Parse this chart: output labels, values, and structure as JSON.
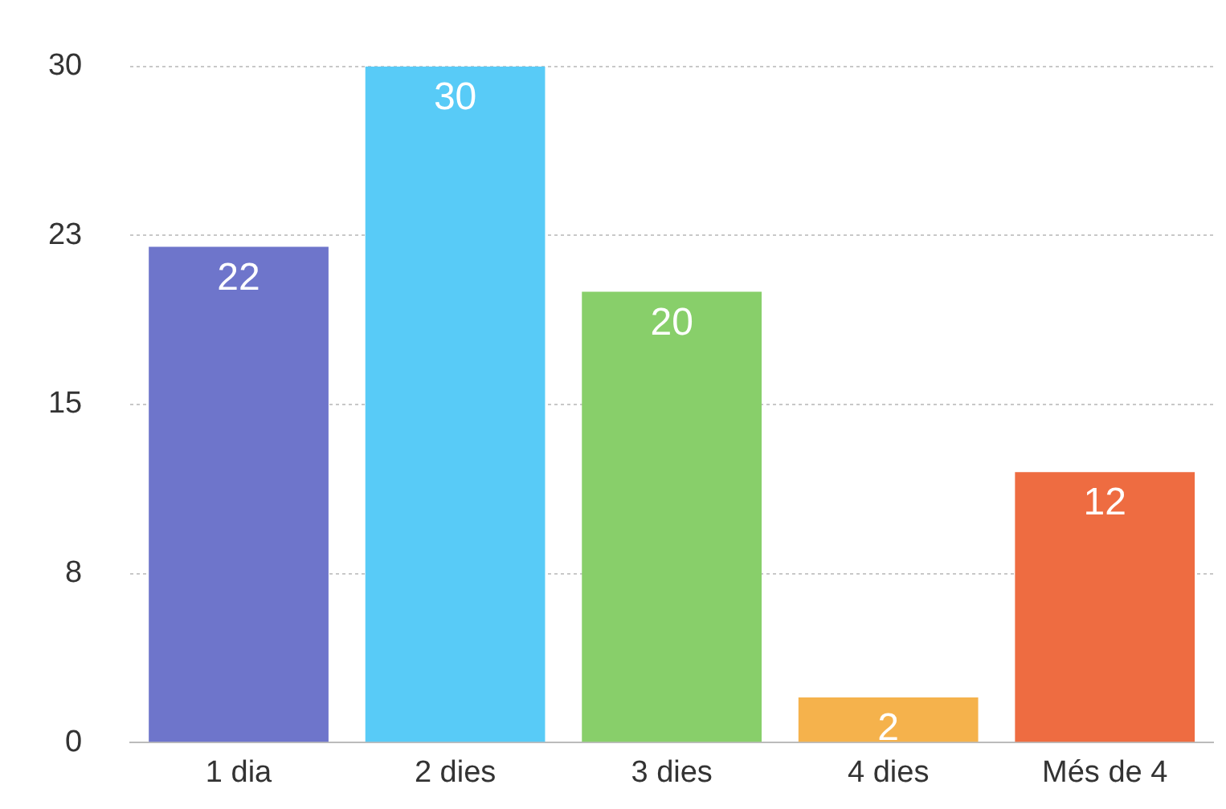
{
  "chart_data": {
    "type": "bar",
    "categories": [
      "1 dia",
      "2 dies",
      "3 dies",
      "4 dies",
      "Més de 4"
    ],
    "values": [
      22,
      30,
      20,
      2,
      12
    ],
    "colors": [
      "#6e75cb",
      "#58cbf7",
      "#88cf6a",
      "#f5b24c",
      "#ee6c41"
    ],
    "ylim": [
      0,
      30
    ],
    "yticks": [
      0,
      {
        "value": 7.5,
        "label": "8"
      },
      15,
      {
        "value": 22.5,
        "label": "23"
      },
      30
    ],
    "grid": "y",
    "data_labels": true
  }
}
